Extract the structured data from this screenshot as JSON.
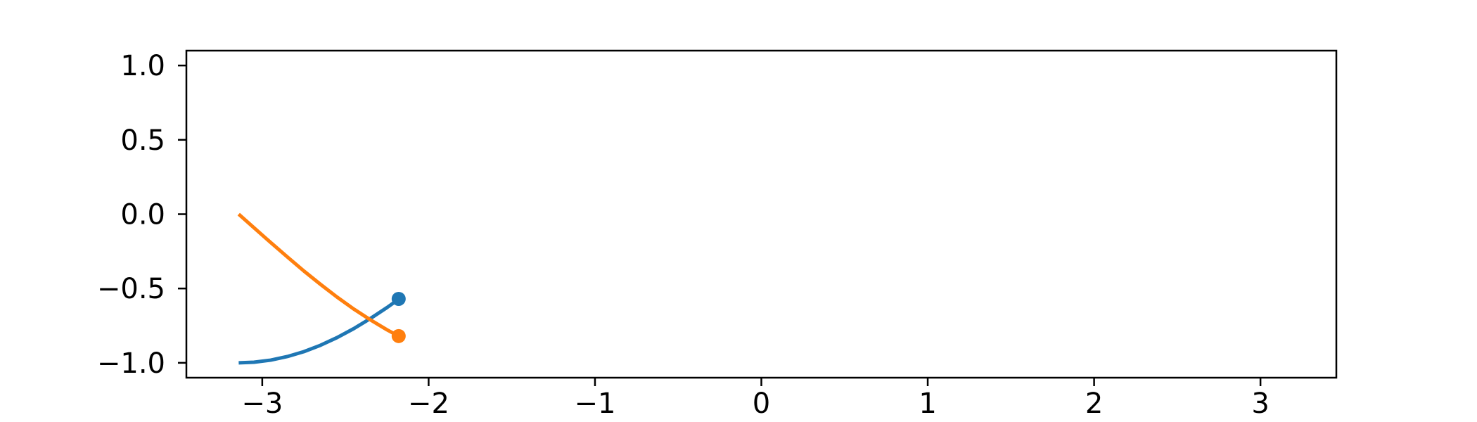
{
  "chart_data": {
    "type": "line",
    "title": "",
    "xlabel": "",
    "ylabel": "",
    "xlim": [
      -3.456,
      3.456
    ],
    "ylim": [
      -1.1,
      1.1
    ],
    "grid": false,
    "legend": "none",
    "x_ticks": [
      -3,
      -2,
      -1,
      0,
      1,
      2,
      3
    ],
    "x_tick_labels": [
      "−3",
      "−2",
      "−1",
      "0",
      "1",
      "2",
      "3"
    ],
    "y_ticks": [
      1.0,
      0.5,
      0.0,
      -0.5,
      -1.0
    ],
    "y_tick_labels": [
      "1.0",
      "0.5",
      "0.0",
      "−0.5",
      "−1.0"
    ],
    "x": [
      -3.1416,
      -3.05,
      -2.95,
      -2.85,
      -2.75,
      -2.65,
      -2.55,
      -2.45,
      -2.35,
      -2.25,
      -2.2
    ],
    "series": [
      {
        "color": "#1f77b4",
        "values": [
          -1.0,
          -0.996,
          -0.982,
          -0.958,
          -0.925,
          -0.882,
          -0.83,
          -0.77,
          -0.702,
          -0.628,
          -0.588
        ]
      },
      {
        "color": "#ff7f0e",
        "values": [
          0.0,
          -0.091,
          -0.19,
          -0.287,
          -0.382,
          -0.472,
          -0.558,
          -0.638,
          -0.711,
          -0.778,
          -0.808
        ]
      }
    ],
    "points": [
      {
        "color": "#1f77b4",
        "x": -2.18,
        "y": -0.57
      },
      {
        "color": "#ff7f0e",
        "x": -2.18,
        "y": -0.82
      }
    ]
  }
}
